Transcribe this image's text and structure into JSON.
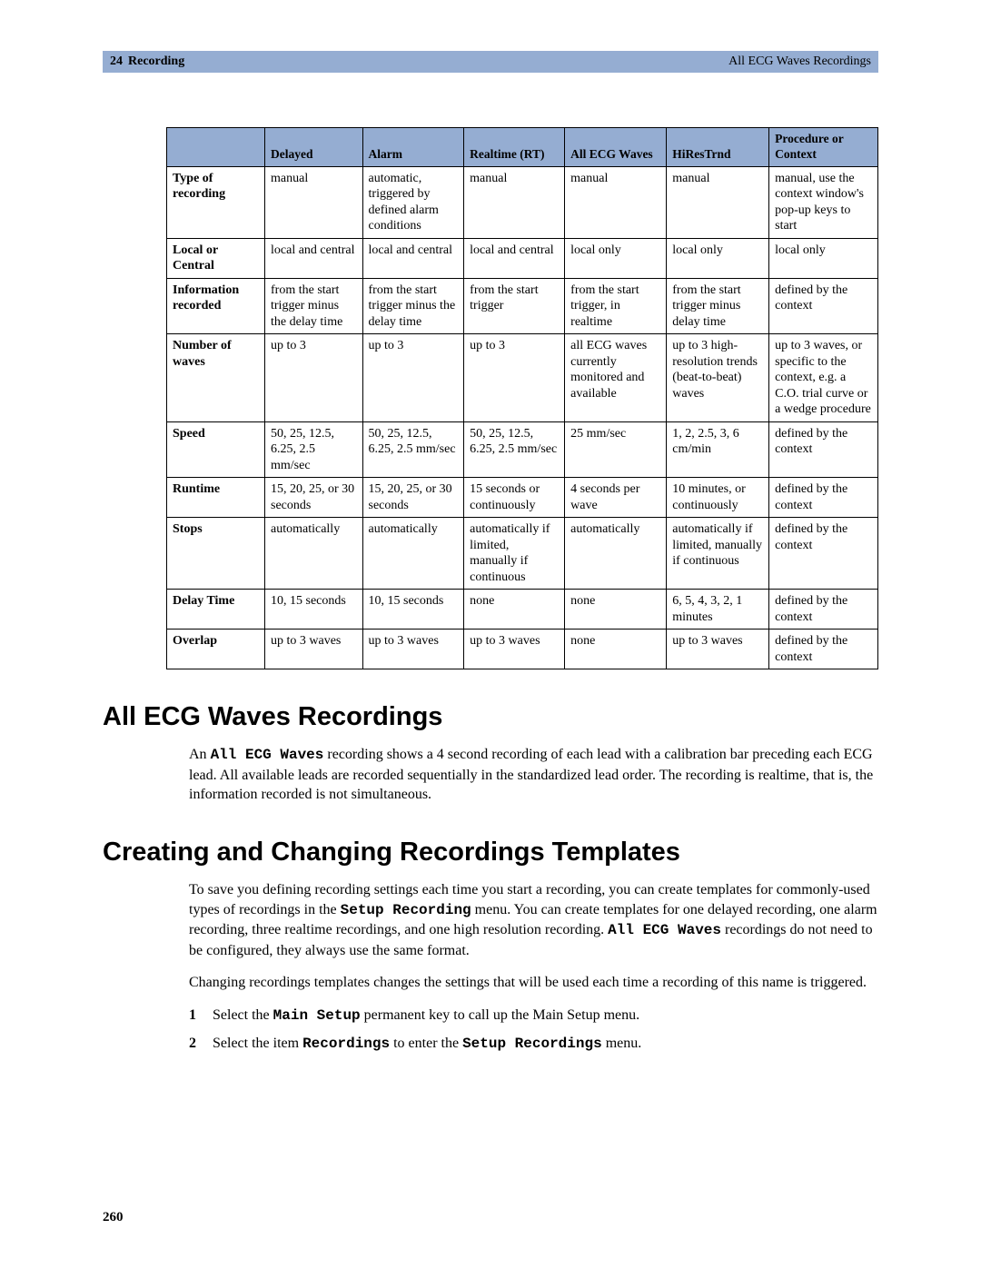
{
  "header": {
    "chapter_num": "24",
    "chapter_title": "Recording",
    "section_right": "All ECG Waves Recordings"
  },
  "table": {
    "col_headers": [
      "",
      "Delayed",
      "Alarm",
      "Realtime (RT)",
      "All ECG Waves",
      "HiResTrnd",
      "Procedure or Context"
    ],
    "rows": [
      {
        "head": "Type of recording",
        "cells": [
          "manual",
          "automatic, triggered by defined alarm conditions",
          "manual",
          "manual",
          "manual",
          "manual, use the context window's pop-up keys to start"
        ]
      },
      {
        "head": "Local or Central",
        "cells": [
          "local and central",
          "local and central",
          "local and central",
          "local only",
          "local only",
          "local only"
        ]
      },
      {
        "head": "Information recorded",
        "cells": [
          "from the start trigger minus the delay time",
          "from the start trigger minus the delay time",
          "from the start trigger",
          "from the start trigger, in realtime",
          "from the start trigger minus delay time",
          "defined by the context"
        ]
      },
      {
        "head": "Number of waves",
        "cells": [
          "up to 3",
          "up to 3",
          "up to 3",
          "all ECG waves currently monitored and available",
          "up to 3 high-resolution trends (beat-to-beat) waves",
          "up to 3 waves, or specific to the context, e.g. a C.O. trial curve or a wedge procedure"
        ]
      },
      {
        "head": "Speed",
        "cells": [
          "50, 25, 12.5, 6.25, 2.5 mm/sec",
          "50, 25, 12.5, 6.25, 2.5 mm/sec",
          "50, 25, 12.5, 6.25, 2.5 mm/sec",
          "25 mm/sec",
          "1, 2, 2.5, 3, 6 cm/min",
          "defined by the context"
        ]
      },
      {
        "head": "Runtime",
        "cells": [
          "15, 20, 25, or 30 seconds",
          "15, 20, 25, or 30 seconds",
          "15 seconds or continuously",
          "4 seconds per wave",
          "10 minutes, or continuously",
          "defined by the context"
        ]
      },
      {
        "head": "Stops",
        "cells": [
          "automatically",
          "automatically",
          "automatically if limited, manually if continuous",
          "automatically",
          "automatically if limited, manually if continuous",
          "defined by the context"
        ]
      },
      {
        "head": "Delay Time",
        "cells": [
          "10, 15 seconds",
          "10, 15 seconds",
          "none",
          "none",
          "6, 5, 4, 3, 2, 1 minutes",
          "defined by the context"
        ]
      },
      {
        "head": "Overlap",
        "cells": [
          "up to 3 waves",
          "up to 3 waves",
          "up to 3 waves",
          "none",
          "up to 3 waves",
          "defined by the context"
        ]
      }
    ]
  },
  "sections": {
    "s1_title": "All ECG Waves Recordings",
    "s1_para_pre": "An ",
    "s1_para_mono": "All ECG Waves",
    "s1_para_post": " recording shows a 4 second recording of each lead with a calibration bar preceding each ECG lead. All available leads are recorded sequentially in the standardized lead order. The recording is realtime, that is, the information recorded is not simultaneous.",
    "s2_title": "Creating and Changing Recordings Templates",
    "s2_p1_a": "To save you defining recording settings each time you start a recording, you can create templates for commonly-used types of recordings in the ",
    "s2_p1_mono1": "Setup Recording",
    "s2_p1_b": " menu. You can create templates for one delayed recording, one alarm recording, three realtime recordings, and one high resolution recording. ",
    "s2_p1_mono2": "All ECG Waves",
    "s2_p1_c": " recordings do not need to be configured, they always use the same format.",
    "s2_p2": "Changing recordings templates changes the settings that will be used each time a recording of this name is triggered.",
    "step1_a": "Select the ",
    "step1_mono": "Main Setup",
    "step1_b": " permanent key to call up the Main Setup menu.",
    "step2_a": "Select the item ",
    "step2_mono1": "Recordings",
    "step2_b": " to enter the ",
    "step2_mono2": "Setup Recordings",
    "step2_c": " menu."
  },
  "page_number": "260",
  "style": {
    "header_bg": "#95add2",
    "border_color": "#000000",
    "body_font": "Garamond",
    "heading_font": "Arial",
    "mono_font": "Courier New"
  }
}
